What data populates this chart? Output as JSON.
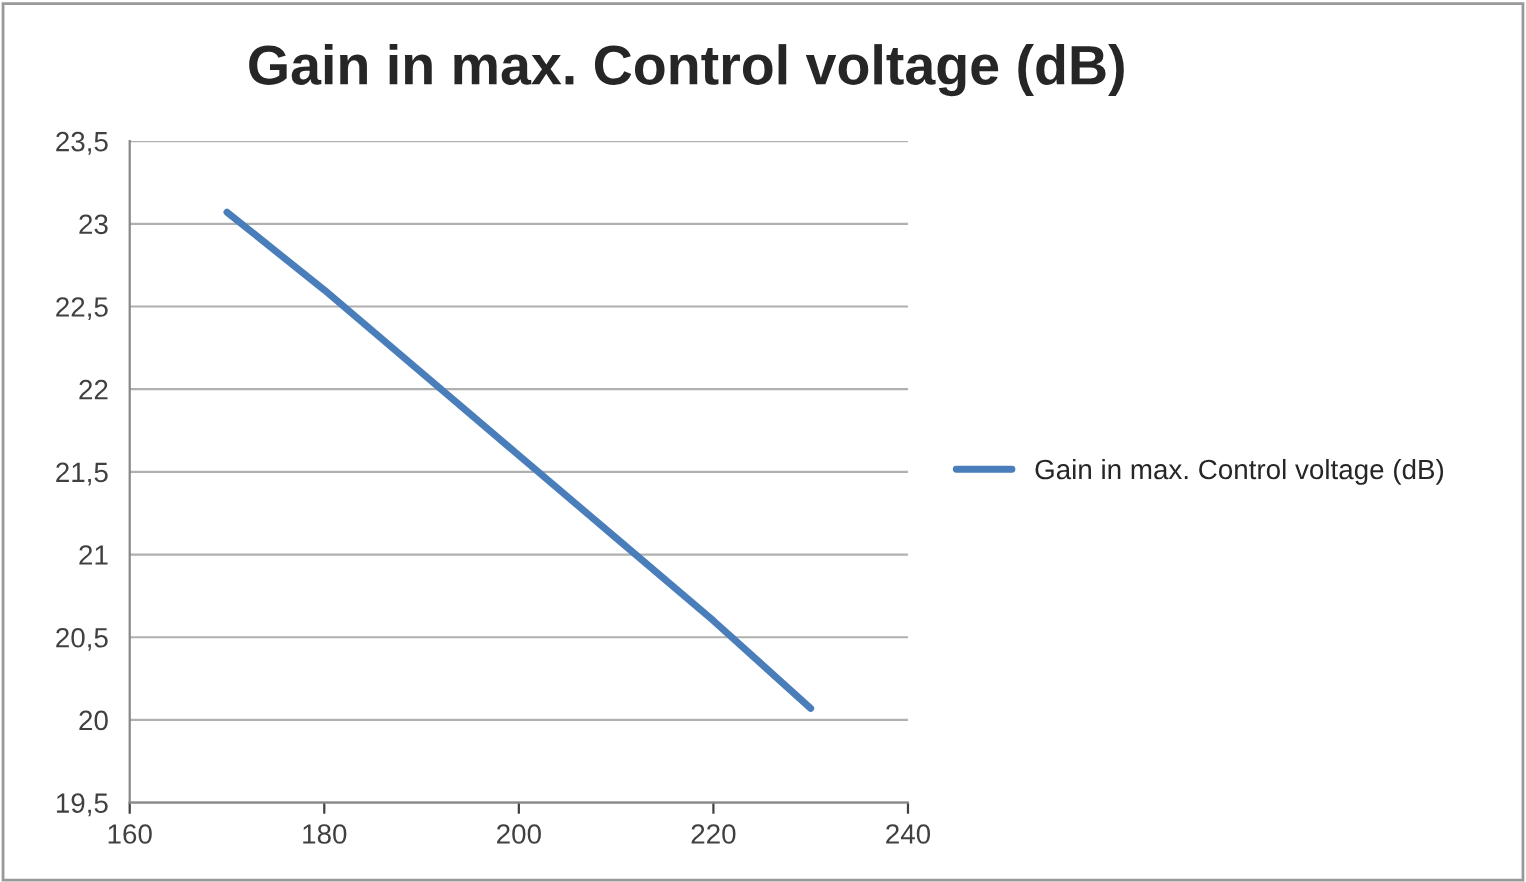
{
  "chart_data": {
    "type": "line",
    "title": "Gain in max. Control voltage (dB)",
    "series": [
      {
        "name": "Gain in max. Control voltage (dB)",
        "color": "#4a7ebb",
        "x": [
          170,
          180,
          190,
          200,
          210,
          220,
          230
        ],
        "values": [
          23.07,
          22.6,
          22.1,
          21.6,
          21.1,
          20.6,
          20.07
        ]
      }
    ],
    "xlim": [
      160,
      240
    ],
    "xticks": [
      160,
      180,
      200,
      220,
      240
    ],
    "ylim": [
      19.5,
      23.5
    ],
    "yticks": [
      {
        "value": 19.5,
        "label": "19,5"
      },
      20,
      {
        "value": 20.5,
        "label": "20,5"
      },
      21,
      {
        "value": 21.5,
        "label": "21,5"
      },
      22,
      {
        "value": 22.5,
        "label": "22,5"
      },
      23,
      {
        "value": 23.5,
        "label": "23,5"
      }
    ],
    "grid": "y",
    "legend": "right",
    "marker": "none",
    "line_style": "solid"
  }
}
